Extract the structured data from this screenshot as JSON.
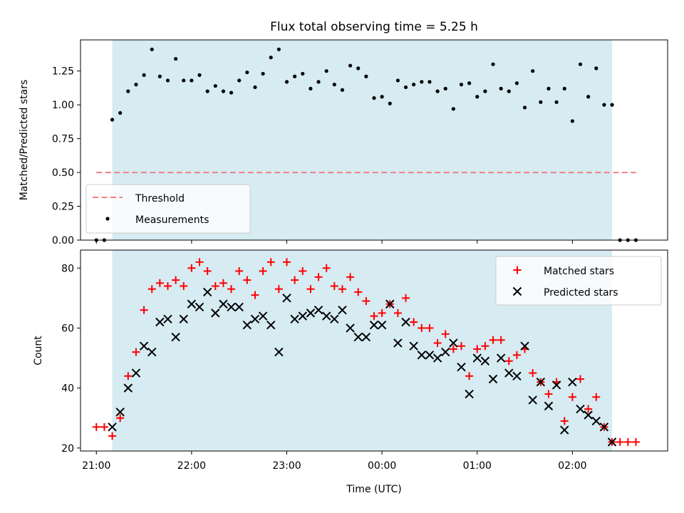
{
  "chart_data": [
    {
      "type": "scatter",
      "title": "Flux total observing time = 5.25 h",
      "ylabel": "Matched/Predicted stars",
      "xlabel": "",
      "xlim": [
        "20:50",
        "27:00"
      ],
      "ylim": [
        0,
        1.48
      ],
      "yticks": [
        0.0,
        0.25,
        0.5,
        0.75,
        1.0,
        1.25
      ],
      "ytick_labels": [
        "0.00",
        "0.25",
        "0.50",
        "0.75",
        "1.00",
        "1.25"
      ],
      "shaded_interval": [
        "21:10",
        "26:25"
      ],
      "shade_color": "#add8e6",
      "legend_position": "lower-left",
      "threshold": {
        "name": "Threshold",
        "value": 0.5,
        "x_start": "21:00",
        "x_end": "26:40",
        "color": "#f08080",
        "style": "dashed"
      },
      "series": [
        {
          "name": "Measurements",
          "color": "#000000",
          "marker": "dot",
          "x": [
            "21:00",
            "21:05",
            "21:10",
            "21:15",
            "21:20",
            "21:25",
            "21:30",
            "21:35",
            "21:40",
            "21:45",
            "21:50",
            "21:55",
            "22:00",
            "22:05",
            "22:10",
            "22:15",
            "22:20",
            "22:25",
            "22:30",
            "22:35",
            "22:40",
            "22:45",
            "22:50",
            "22:55",
            "23:00",
            "23:05",
            "23:10",
            "23:15",
            "23:20",
            "23:25",
            "23:30",
            "23:35",
            "23:40",
            "23:45",
            "23:50",
            "23:55",
            "24:00",
            "24:05",
            "24:10",
            "24:15",
            "24:20",
            "24:25",
            "24:30",
            "24:35",
            "24:40",
            "24:45",
            "24:50",
            "24:55",
            "25:00",
            "25:05",
            "25:10",
            "25:15",
            "25:20",
            "25:25",
            "25:30",
            "25:35",
            "25:40",
            "25:45",
            "25:50",
            "25:55",
            "26:00",
            "26:05",
            "26:10",
            "26:15",
            "26:20",
            "26:25",
            "26:30",
            "26:35",
            "26:40"
          ],
          "y": [
            0,
            0,
            0.89,
            0.94,
            1.1,
            1.15,
            1.22,
            1.41,
            1.21,
            1.18,
            1.34,
            1.18,
            1.18,
            1.22,
            1.1,
            1.14,
            1.1,
            1.09,
            1.18,
            1.24,
            1.13,
            1.23,
            1.35,
            1.41,
            1.17,
            1.21,
            1.23,
            1.12,
            1.17,
            1.25,
            1.15,
            1.11,
            1.29,
            1.27,
            1.21,
            1.05,
            1.06,
            1.01,
            1.18,
            1.13,
            1.15,
            1.17,
            1.17,
            1.1,
            1.12,
            0.97,
            1.15,
            1.16,
            1.06,
            1.1,
            1.3,
            1.12,
            1.1,
            1.16,
            0.98,
            1.25,
            1.02,
            1.12,
            1.02,
            1.12,
            0.88,
            1.3,
            1.06,
            1.27,
            1.0,
            1.0,
            0,
            0,
            0
          ]
        }
      ]
    },
    {
      "type": "scatter",
      "title": "",
      "xlabel": "Time (UTC)",
      "ylabel": "Count",
      "xlim": [
        "20:50",
        "27:00"
      ],
      "ylim": [
        19,
        86
      ],
      "xticks": [
        "21:00",
        "22:00",
        "23:00",
        "24:00",
        "25:00",
        "26:00"
      ],
      "xtick_labels": [
        "21:00",
        "22:00",
        "23:00",
        "00:00",
        "01:00",
        "02:00"
      ],
      "yticks": [
        20,
        40,
        60,
        80
      ],
      "ytick_labels": [
        "20",
        "40",
        "60",
        "80"
      ],
      "shaded_interval": [
        "21:10",
        "26:25"
      ],
      "shade_color": "#add8e6",
      "legend_position": "top-right",
      "series": [
        {
          "name": "Matched stars",
          "color": "#ff0000",
          "marker": "plus",
          "x": [
            "21:00",
            "21:05",
            "21:10",
            "21:15",
            "21:20",
            "21:25",
            "21:30",
            "21:35",
            "21:40",
            "21:45",
            "21:50",
            "21:55",
            "22:00",
            "22:05",
            "22:10",
            "22:15",
            "22:20",
            "22:25",
            "22:30",
            "22:35",
            "22:40",
            "22:45",
            "22:50",
            "22:55",
            "23:00",
            "23:05",
            "23:10",
            "23:15",
            "23:20",
            "23:25",
            "23:30",
            "23:35",
            "23:40",
            "23:45",
            "23:50",
            "23:55",
            "24:00",
            "24:05",
            "24:10",
            "24:15",
            "24:20",
            "24:25",
            "24:30",
            "24:35",
            "24:40",
            "24:45",
            "24:50",
            "24:55",
            "25:00",
            "25:05",
            "25:10",
            "25:15",
            "25:20",
            "25:25",
            "25:30",
            "25:35",
            "25:40",
            "25:45",
            "25:50",
            "25:55",
            "26:00",
            "26:05",
            "26:10",
            "26:15",
            "26:20",
            "26:25",
            "26:30",
            "26:35",
            "26:40"
          ],
          "y": [
            27,
            27,
            24,
            30,
            44,
            52,
            66,
            73,
            75,
            74,
            76,
            74,
            80,
            82,
            79,
            74,
            75,
            73,
            79,
            76,
            71,
            79,
            82,
            73,
            82,
            76,
            79,
            73,
            77,
            80,
            74,
            73,
            77,
            72,
            69,
            64,
            65,
            68,
            65,
            70,
            62,
            60,
            60,
            55,
            58,
            53,
            54,
            44,
            53,
            54,
            56,
            56,
            49,
            51,
            53,
            45,
            42,
            38,
            42,
            29,
            37,
            43,
            33,
            37,
            27,
            22,
            22,
            22,
            22
          ]
        },
        {
          "name": "Predicted stars",
          "color": "#000000",
          "marker": "x",
          "x": [
            "21:10",
            "21:15",
            "21:20",
            "21:25",
            "21:30",
            "21:35",
            "21:40",
            "21:45",
            "21:50",
            "21:55",
            "22:00",
            "22:05",
            "22:10",
            "22:15",
            "22:20",
            "22:25",
            "22:30",
            "22:35",
            "22:40",
            "22:45",
            "22:50",
            "22:55",
            "23:00",
            "23:05",
            "23:10",
            "23:15",
            "23:20",
            "23:25",
            "23:30",
            "23:35",
            "23:40",
            "23:45",
            "23:50",
            "23:55",
            "24:00",
            "24:05",
            "24:10",
            "24:15",
            "24:20",
            "24:25",
            "24:30",
            "24:35",
            "24:40",
            "24:45",
            "24:50",
            "24:55",
            "25:00",
            "25:05",
            "25:10",
            "25:15",
            "25:20",
            "25:25",
            "25:30",
            "25:35",
            "25:40",
            "25:45",
            "25:50",
            "25:55",
            "26:00",
            "26:05",
            "26:10",
            "26:15",
            "26:20",
            "26:25"
          ],
          "y": [
            27,
            32,
            40,
            45,
            54,
            52,
            62,
            63,
            57,
            63,
            68,
            67,
            72,
            65,
            68,
            67,
            67,
            61,
            63,
            64,
            61,
            52,
            70,
            63,
            64,
            65,
            66,
            64,
            63,
            66,
            60,
            57,
            57,
            61,
            61,
            68,
            55,
            62,
            54,
            51,
            51,
            50,
            52,
            55,
            47,
            38,
            50,
            49,
            43,
            50,
            45,
            44,
            54,
            36,
            42,
            34,
            41,
            26,
            42,
            33,
            31,
            29,
            27,
            22
          ]
        }
      ]
    }
  ]
}
